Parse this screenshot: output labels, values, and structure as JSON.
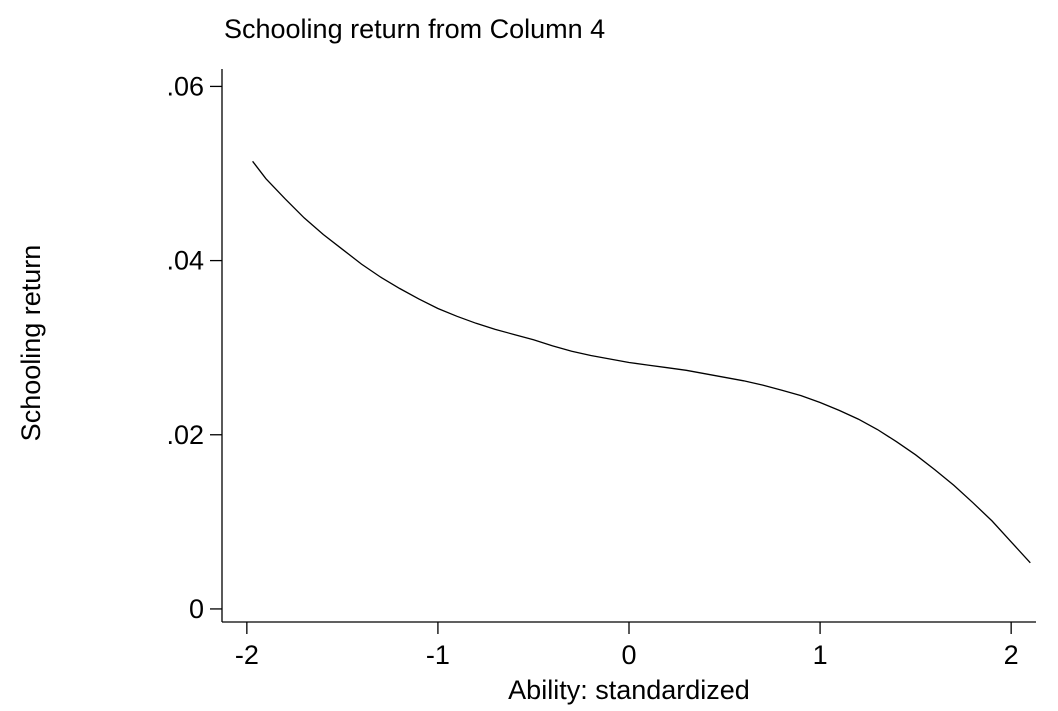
{
  "chart_data": {
    "type": "line",
    "title": "Schooling return from Column 4",
    "xlabel": "Ability: standardized",
    "ylabel": "Schooling return",
    "xlim": [
      -2.13,
      2.13
    ],
    "ylim": [
      -0.0015,
      0.062
    ],
    "x_ticks": [
      -2,
      -1,
      0,
      1,
      2
    ],
    "x_tick_labels": [
      "-2",
      "-1",
      "0",
      "1",
      "2"
    ],
    "y_ticks": [
      0,
      0.02,
      0.04,
      0.06
    ],
    "y_tick_labels": [
      "0",
      ".02",
      ".04",
      ".06"
    ],
    "grid": false,
    "series": [
      {
        "x": [
          -1.97,
          -1.9,
          -1.8,
          -1.7,
          -1.6,
          -1.5,
          -1.4,
          -1.3,
          -1.2,
          -1.1,
          -1.0,
          -0.9,
          -0.8,
          -0.7,
          -0.6,
          -0.5,
          -0.4,
          -0.3,
          -0.2,
          -0.1,
          0.0,
          0.1,
          0.2,
          0.3,
          0.4,
          0.5,
          0.6,
          0.7,
          0.8,
          0.9,
          1.0,
          1.1,
          1.2,
          1.3,
          1.4,
          1.5,
          1.6,
          1.7,
          1.8,
          1.9,
          2.0,
          2.1
        ],
        "y": [
          0.0514,
          0.0494,
          0.0471,
          0.0449,
          0.043,
          0.0413,
          0.0396,
          0.0381,
          0.0368,
          0.0356,
          0.0345,
          0.0336,
          0.0328,
          0.0321,
          0.0315,
          0.0309,
          0.0302,
          0.0296,
          0.0291,
          0.0287,
          0.0283,
          0.028,
          0.0277,
          0.0274,
          0.027,
          0.0266,
          0.0262,
          0.0257,
          0.0251,
          0.0245,
          0.0237,
          0.0228,
          0.0218,
          0.0206,
          0.0192,
          0.0177,
          0.016,
          0.0142,
          0.0122,
          0.0101,
          0.0077,
          0.0053
        ]
      }
    ]
  }
}
